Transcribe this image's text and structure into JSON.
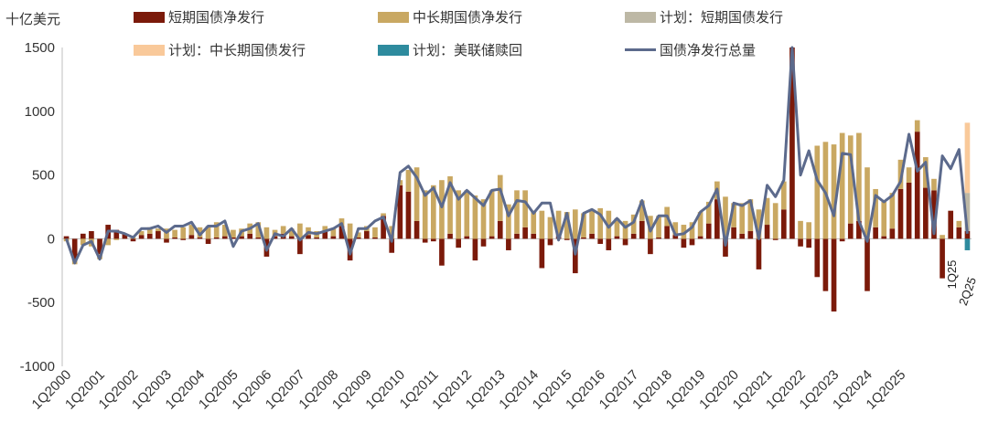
{
  "chart_data": {
    "type": "bar",
    "unit_label": "十亿美元",
    "ylim": [
      -1000,
      1500
    ],
    "yticks": [
      1500,
      1000,
      500,
      0,
      -500,
      -1000
    ],
    "xtick_labels": [
      "1Q2000",
      "1Q2001",
      "1Q2002",
      "1Q2003",
      "1Q2004",
      "1Q2005",
      "1Q2006",
      "1Q2007",
      "1Q2008",
      "1Q2009",
      "1Q2010",
      "1Q2011",
      "1Q2012",
      "1Q2013",
      "1Q2014",
      "1Q2015",
      "1Q2016",
      "1Q2017",
      "1Q2018",
      "1Q2019",
      "1Q2020",
      "1Q2021",
      "1Q2022",
      "1Q2023",
      "1Q2024",
      "1Q2025"
    ],
    "annotations": [
      {
        "text": "1Q25"
      },
      {
        "text": "2Q25"
      }
    ],
    "colors": {
      "short": "#7B1A0A",
      "long": "#C9A862",
      "plan_short": "#BDB8A5",
      "plan_long": "#F9C99A",
      "fed": "#2E8B9E",
      "total": "#5C6A8C"
    },
    "legend": [
      {
        "key": "short",
        "label": "短期国债净发行"
      },
      {
        "key": "long",
        "label": "中长期国债净发行"
      },
      {
        "key": "plan_short",
        "label": "计划：短期国债发行"
      },
      {
        "key": "plan_long",
        "label": "计划：中长期国债发行"
      },
      {
        "key": "fed",
        "label": "计划：美联储赎回"
      },
      {
        "key": "total",
        "label": "国债净发行总量"
      }
    ],
    "series": [
      {
        "key": "short",
        "values": [
          20,
          -170,
          40,
          60,
          -120,
          110,
          70,
          40,
          -20,
          30,
          40,
          60,
          -30,
          10,
          -10,
          30,
          10,
          -40,
          10,
          20,
          10,
          20,
          40,
          10,
          -140,
          20,
          40,
          20,
          -120,
          30,
          10,
          60,
          20,
          100,
          -170,
          10,
          60,
          10,
          180,
          -110,
          420,
          370,
          140,
          -30,
          -20,
          -210,
          40,
          -70,
          20,
          -170,
          -60,
          20,
          140,
          -90,
          40,
          90,
          40,
          -230,
          -50,
          20,
          -10,
          -270,
          10,
          40,
          -40,
          -90,
          20,
          -50,
          40,
          140,
          -120,
          10,
          100,
          30,
          -70,
          -50,
          20,
          120,
          310,
          -140,
          90,
          40,
          60,
          -240,
          110,
          -10,
          230,
          1500,
          -60,
          -70,
          -300,
          -410,
          -570,
          -20,
          120,
          140,
          -410,
          90,
          20,
          80,
          390,
          440,
          840,
          400,
          380,
          -310,
          220,
          90,
          60,
          0
        ],
        "planned": [
          0,
          0,
          0,
          0,
          0,
          0,
          0,
          0,
          0,
          0,
          0,
          0,
          0,
          0,
          0,
          0,
          0,
          0,
          0,
          0,
          0,
          0,
          0,
          0,
          0,
          0,
          0,
          0,
          0,
          0,
          0,
          0,
          0,
          0,
          0,
          0,
          0,
          0,
          0,
          0,
          0,
          0,
          0,
          0,
          0,
          0,
          0,
          0,
          0,
          0,
          0,
          0,
          0,
          0,
          0,
          0,
          0,
          0,
          0,
          0,
          0,
          0,
          0,
          0,
          0,
          0,
          0,
          0,
          0,
          0,
          0,
          0,
          0,
          0,
          0,
          0,
          0,
          0,
          0,
          0,
          0,
          0,
          0,
          0,
          0,
          0,
          0,
          0,
          0,
          0,
          0,
          0,
          0,
          0,
          0,
          0,
          0,
          0,
          0,
          0,
          0,
          0,
          0,
          0,
          0,
          0,
          0,
          0,
          0,
          0,
          0
        ]
      },
      {
        "key": "long",
        "values": [
          -20,
          -30,
          -50,
          -60,
          -40,
          -50,
          -10,
          0,
          10,
          30,
          50,
          20,
          80,
          60,
          90,
          80,
          80,
          100,
          120,
          90,
          60,
          60,
          80,
          120,
          90,
          50,
          60,
          60,
          120,
          60,
          50,
          40,
          60,
          60,
          120,
          40,
          40,
          80,
          20,
          100,
          40,
          170,
          420,
          380,
          420,
          460,
          450,
          380,
          360,
          340,
          310,
          360,
          360,
          270,
          340,
          290,
          180,
          220,
          170,
          200,
          210,
          230,
          190,
          190,
          240,
          220,
          140,
          140,
          150,
          160,
          180,
          170,
          150,
          100,
          110,
          130,
          190,
          170,
          140,
          330,
          190,
          240,
          250,
          230,
          210,
          280,
          220,
          350,
          140,
          130,
          730,
          760,
          740,
          830,
          690,
          690,
          560,
          300,
          270,
          280,
          230,
          120,
          90,
          240,
          90,
          30,
          0,
          50,
          0,
          0,
          0
        ]
      },
      {
        "key": "plan_short",
        "values": [
          0,
          0,
          0,
          0,
          0,
          0,
          0,
          0,
          0,
          0,
          0,
          0,
          0,
          0,
          0,
          0,
          0,
          0,
          0,
          0,
          0,
          0,
          0,
          0,
          0,
          0,
          0,
          0,
          0,
          0,
          0,
          0,
          0,
          0,
          0,
          0,
          0,
          0,
          0,
          0,
          0,
          0,
          0,
          0,
          0,
          0,
          0,
          0,
          0,
          0,
          0,
          0,
          0,
          0,
          0,
          0,
          0,
          0,
          0,
          0,
          0,
          0,
          0,
          0,
          0,
          0,
          0,
          0,
          0,
          0,
          0,
          0,
          0,
          0,
          0,
          0,
          0,
          0,
          0,
          0,
          0,
          0,
          0,
          0,
          0,
          0,
          0,
          0,
          0,
          0,
          0,
          0,
          0,
          0,
          0,
          0,
          0,
          0,
          0,
          0,
          0,
          0,
          0,
          0,
          0,
          0,
          0,
          0,
          300,
          -370,
          0
        ]
      },
      {
        "key": "plan_long",
        "values": [
          0,
          0,
          0,
          0,
          0,
          0,
          0,
          0,
          0,
          0,
          0,
          0,
          0,
          0,
          0,
          0,
          0,
          0,
          0,
          0,
          0,
          0,
          0,
          0,
          0,
          0,
          0,
          0,
          0,
          0,
          0,
          0,
          0,
          0,
          0,
          0,
          0,
          0,
          0,
          0,
          0,
          0,
          0,
          0,
          0,
          0,
          0,
          0,
          0,
          0,
          0,
          0,
          0,
          0,
          0,
          0,
          0,
          0,
          0,
          0,
          0,
          0,
          0,
          0,
          0,
          0,
          0,
          0,
          0,
          0,
          0,
          0,
          0,
          0,
          0,
          0,
          0,
          0,
          0,
          0,
          0,
          0,
          0,
          0,
          0,
          0,
          0,
          0,
          0,
          0,
          0,
          0,
          0,
          0,
          0,
          0,
          0,
          0,
          0,
          0,
          0,
          0,
          0,
          0,
          0,
          0,
          0,
          0,
          550,
          510,
          0
        ]
      },
      {
        "key": "fed",
        "values": [
          0,
          0,
          0,
          0,
          0,
          0,
          0,
          0,
          0,
          0,
          0,
          0,
          0,
          0,
          0,
          0,
          0,
          0,
          0,
          0,
          0,
          0,
          0,
          0,
          0,
          0,
          0,
          0,
          0,
          0,
          0,
          0,
          0,
          0,
          0,
          0,
          0,
          0,
          0,
          0,
          0,
          0,
          0,
          0,
          0,
          0,
          0,
          0,
          0,
          0,
          0,
          0,
          0,
          0,
          0,
          0,
          0,
          0,
          0,
          0,
          0,
          0,
          0,
          0,
          0,
          0,
          0,
          0,
          0,
          0,
          0,
          0,
          0,
          0,
          0,
          0,
          0,
          0,
          0,
          0,
          0,
          0,
          0,
          0,
          0,
          0,
          0,
          0,
          0,
          0,
          0,
          0,
          0,
          0,
          0,
          0,
          0,
          0,
          0,
          0,
          0,
          0,
          0,
          0,
          0,
          0,
          0,
          0,
          -90,
          -90,
          0
        ]
      },
      {
        "key": "total",
        "values": [
          0,
          -190,
          -50,
          -20,
          -160,
          60,
          60,
          40,
          10,
          80,
          80,
          100,
          50,
          100,
          100,
          130,
          30,
          100,
          100,
          140,
          -60,
          60,
          80,
          120,
          -90,
          40,
          20,
          80,
          -10,
          50,
          40,
          60,
          80,
          120,
          -120,
          80,
          80,
          140,
          170,
          -20,
          520,
          570,
          480,
          340,
          400,
          250,
          440,
          310,
          380,
          320,
          260,
          380,
          390,
          180,
          300,
          290,
          200,
          280,
          280,
          -10,
          200,
          -120,
          200,
          230,
          190,
          90,
          160,
          90,
          130,
          300,
          60,
          180,
          180,
          30,
          40,
          90,
          210,
          260,
          390,
          -50,
          280,
          260,
          300,
          0,
          420,
          330,
          460,
          1500,
          500,
          690,
          460,
          360,
          180,
          670,
          660,
          140,
          -20,
          340,
          290,
          340,
          450,
          820,
          530,
          600,
          40,
          650,
          550,
          700,
          40
        ]
      }
    ]
  }
}
